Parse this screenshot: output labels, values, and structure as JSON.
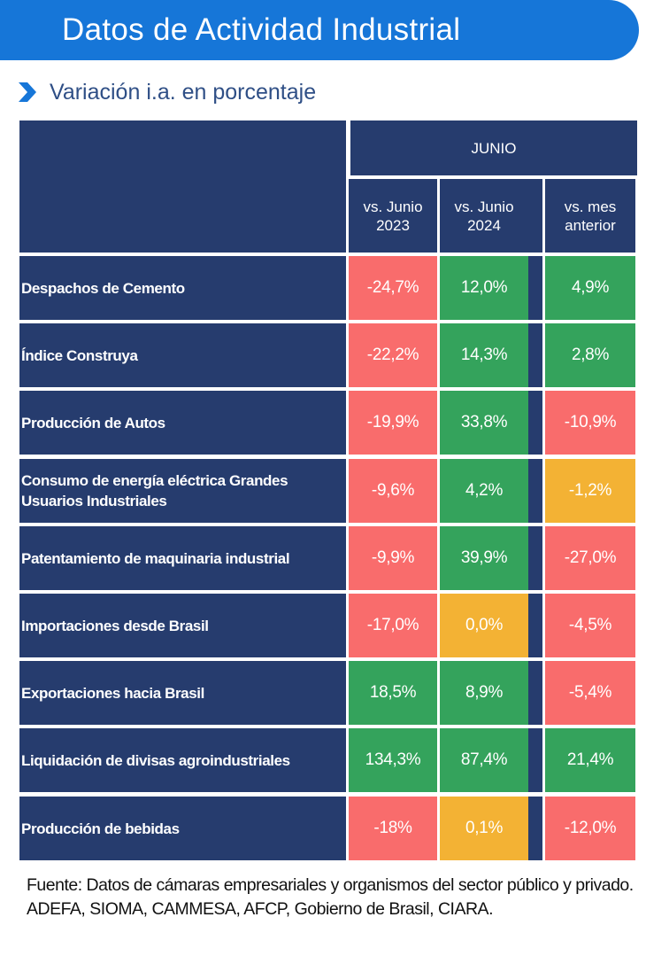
{
  "header": {
    "title": "Datos de Actividad Industrial"
  },
  "subtitle": {
    "text": "Variación i.a. en porcentaje",
    "icon": "chevron-right-icon"
  },
  "colors": {
    "banner": "#1676d8",
    "navy": "#263c6e",
    "red": "#f96c6c",
    "green": "#34a35c",
    "amber": "#f3b234"
  },
  "chart_data": {
    "type": "table",
    "title": "Variación i.a. en porcentaje",
    "group_header": "JUNIO",
    "columns": [
      "vs. Junio\n2023",
      "vs. Junio\n2024",
      "vs. mes\nanterior"
    ],
    "rows": [
      {
        "label": "Despachos de Cemento",
        "values": [
          "-24,7%",
          "12,0%",
          "4,9%"
        ],
        "status": [
          "red",
          "green",
          "green"
        ]
      },
      {
        "label": "Índice Construya",
        "values": [
          "-22,2%",
          "14,3%",
          "2,8%"
        ],
        "status": [
          "red",
          "green",
          "green"
        ]
      },
      {
        "label": "Producción de Autos",
        "values": [
          "-19,9%",
          "33,8%",
          "-10,9%"
        ],
        "status": [
          "red",
          "green",
          "red"
        ]
      },
      {
        "label": "Consumo de energía eléctrica Grandes Usuarios Industriales",
        "values": [
          "-9,6%",
          "4,2%",
          "-1,2%"
        ],
        "status": [
          "red",
          "green",
          "amber"
        ]
      },
      {
        "label": "Patentamiento de maquinaria industrial",
        "values": [
          "-9,9%",
          "39,9%",
          "-27,0%"
        ],
        "status": [
          "red",
          "green",
          "red"
        ]
      },
      {
        "label": "Importaciones desde Brasil",
        "values": [
          "-17,0%",
          "0,0%",
          "-4,5%"
        ],
        "status": [
          "red",
          "amber",
          "red"
        ]
      },
      {
        "label": "Exportaciones hacia Brasil",
        "values": [
          "18,5%",
          "8,9%",
          "-5,4%"
        ],
        "status": [
          "green",
          "green",
          "red"
        ]
      },
      {
        "label": "Liquidación de divisas agroindustriales",
        "values": [
          "134,3%",
          "87,4%",
          "21,4%"
        ],
        "status": [
          "green",
          "green",
          "green"
        ]
      },
      {
        "label": "Producción de bebidas",
        "values": [
          "-18%",
          "0,1%",
          "-12,0%"
        ],
        "status": [
          "red",
          "amber",
          "red"
        ]
      }
    ]
  },
  "footer": {
    "text": "Fuente: Datos de cámaras empresariales y organismos del sector público y privado. ADEFA, SIOMA, CAMMESA, AFCP, Gobierno de Brasil, CIARA."
  }
}
